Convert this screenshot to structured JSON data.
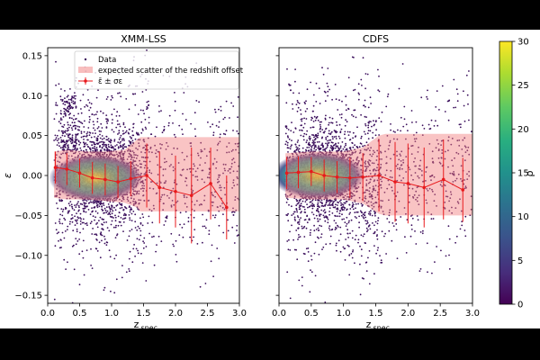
{
  "figure": {
    "colorbar": {
      "label": "ρ",
      "range": [
        0,
        30
      ],
      "ticks": [
        "0",
        "5",
        "10",
        "15",
        "20",
        "25",
        "30"
      ]
    }
  },
  "chart_data": [
    {
      "type": "scatter",
      "title": "XMM-LSS",
      "xlabel": "z",
      "xlabel_sub": "spec",
      "ylabel": "ε",
      "xlim": [
        0.0,
        3.0
      ],
      "ylim": [
        -0.16,
        0.16
      ],
      "xticks": [
        "0.0",
        "0.5",
        "1.0",
        "1.5",
        "2.0",
        "2.5",
        "3.0"
      ],
      "yticks": [
        "0.15",
        "0.10",
        "0.05",
        "0.00",
        "−0.05",
        "−0.10",
        "−0.15"
      ],
      "legend": {
        "placement": "top-right",
        "entries": [
          "Data",
          "expected scatter of the redshift offset",
          "ε̄ ± σε"
        ]
      },
      "scatter_band": [
        {
          "x": 0.1,
          "lo": -0.028,
          "hi": 0.03
        },
        {
          "x": 0.3,
          "lo": -0.03,
          "hi": 0.032
        },
        {
          "x": 0.6,
          "lo": -0.03,
          "hi": 0.03
        },
        {
          "x": 0.9,
          "lo": -0.032,
          "hi": 0.03
        },
        {
          "x": 1.2,
          "lo": -0.034,
          "hi": 0.032
        },
        {
          "x": 1.4,
          "lo": -0.04,
          "hi": 0.045
        },
        {
          "x": 1.45,
          "lo": -0.045,
          "hi": 0.048
        },
        {
          "x": 3.0,
          "lo": -0.045,
          "hi": 0.048
        }
      ],
      "mean_line": [
        {
          "x": 0.12,
          "y": 0.01,
          "err": 0.02
        },
        {
          "x": 0.3,
          "y": 0.008,
          "err": 0.02
        },
        {
          "x": 0.5,
          "y": 0.003,
          "err": 0.018
        },
        {
          "x": 0.7,
          "y": -0.003,
          "err": 0.02
        },
        {
          "x": 0.9,
          "y": -0.005,
          "err": 0.02
        },
        {
          "x": 1.1,
          "y": -0.008,
          "err": 0.02
        },
        {
          "x": 1.3,
          "y": -0.004,
          "err": 0.022
        },
        {
          "x": 1.55,
          "y": 0.0,
          "err": 0.04
        },
        {
          "x": 1.75,
          "y": -0.015,
          "err": 0.045
        },
        {
          "x": 2.0,
          "y": -0.02,
          "err": 0.045
        },
        {
          "x": 2.25,
          "y": -0.025,
          "err": 0.06
        },
        {
          "x": 2.55,
          "y": -0.01,
          "err": 0.045
        },
        {
          "x": 2.8,
          "y": -0.04,
          "err": 0.04
        }
      ],
      "density_peak": {
        "x": 0.75,
        "y": -0.003
      }
    },
    {
      "type": "scatter",
      "title": "CDFS",
      "xlabel": "z",
      "xlabel_sub": "spec",
      "ylabel": "",
      "xlim": [
        0.0,
        3.0
      ],
      "ylim": [
        -0.16,
        0.16
      ],
      "xticks": [
        "0.0",
        "0.5",
        "1.0",
        "1.5",
        "2.0",
        "2.5",
        "3.0"
      ],
      "yticks": [],
      "scatter_band": [
        {
          "x": 0.1,
          "lo": -0.028,
          "hi": 0.028
        },
        {
          "x": 0.5,
          "lo": -0.03,
          "hi": 0.03
        },
        {
          "x": 1.0,
          "lo": -0.03,
          "hi": 0.03
        },
        {
          "x": 1.3,
          "lo": -0.035,
          "hi": 0.035
        },
        {
          "x": 1.55,
          "lo": -0.048,
          "hi": 0.05
        },
        {
          "x": 1.65,
          "lo": -0.05,
          "hi": 0.052
        },
        {
          "x": 3.0,
          "lo": -0.05,
          "hi": 0.052
        }
      ],
      "mean_line": [
        {
          "x": 0.12,
          "y": 0.003,
          "err": 0.02
        },
        {
          "x": 0.3,
          "y": 0.004,
          "err": 0.02
        },
        {
          "x": 0.5,
          "y": 0.005,
          "err": 0.018
        },
        {
          "x": 0.7,
          "y": 0.0,
          "err": 0.02
        },
        {
          "x": 0.9,
          "y": -0.002,
          "err": 0.02
        },
        {
          "x": 1.1,
          "y": -0.003,
          "err": 0.025
        },
        {
          "x": 1.3,
          "y": -0.002,
          "err": 0.03
        },
        {
          "x": 1.55,
          "y": 0.0,
          "err": 0.045
        },
        {
          "x": 1.8,
          "y": -0.008,
          "err": 0.05
        },
        {
          "x": 2.0,
          "y": -0.01,
          "err": 0.05
        },
        {
          "x": 2.25,
          "y": -0.015,
          "err": 0.05
        },
        {
          "x": 2.55,
          "y": -0.005,
          "err": 0.05
        },
        {
          "x": 2.85,
          "y": -0.018,
          "err": 0.04
        }
      ],
      "density_peak": {
        "x": 0.6,
        "y": 0.0
      }
    }
  ]
}
